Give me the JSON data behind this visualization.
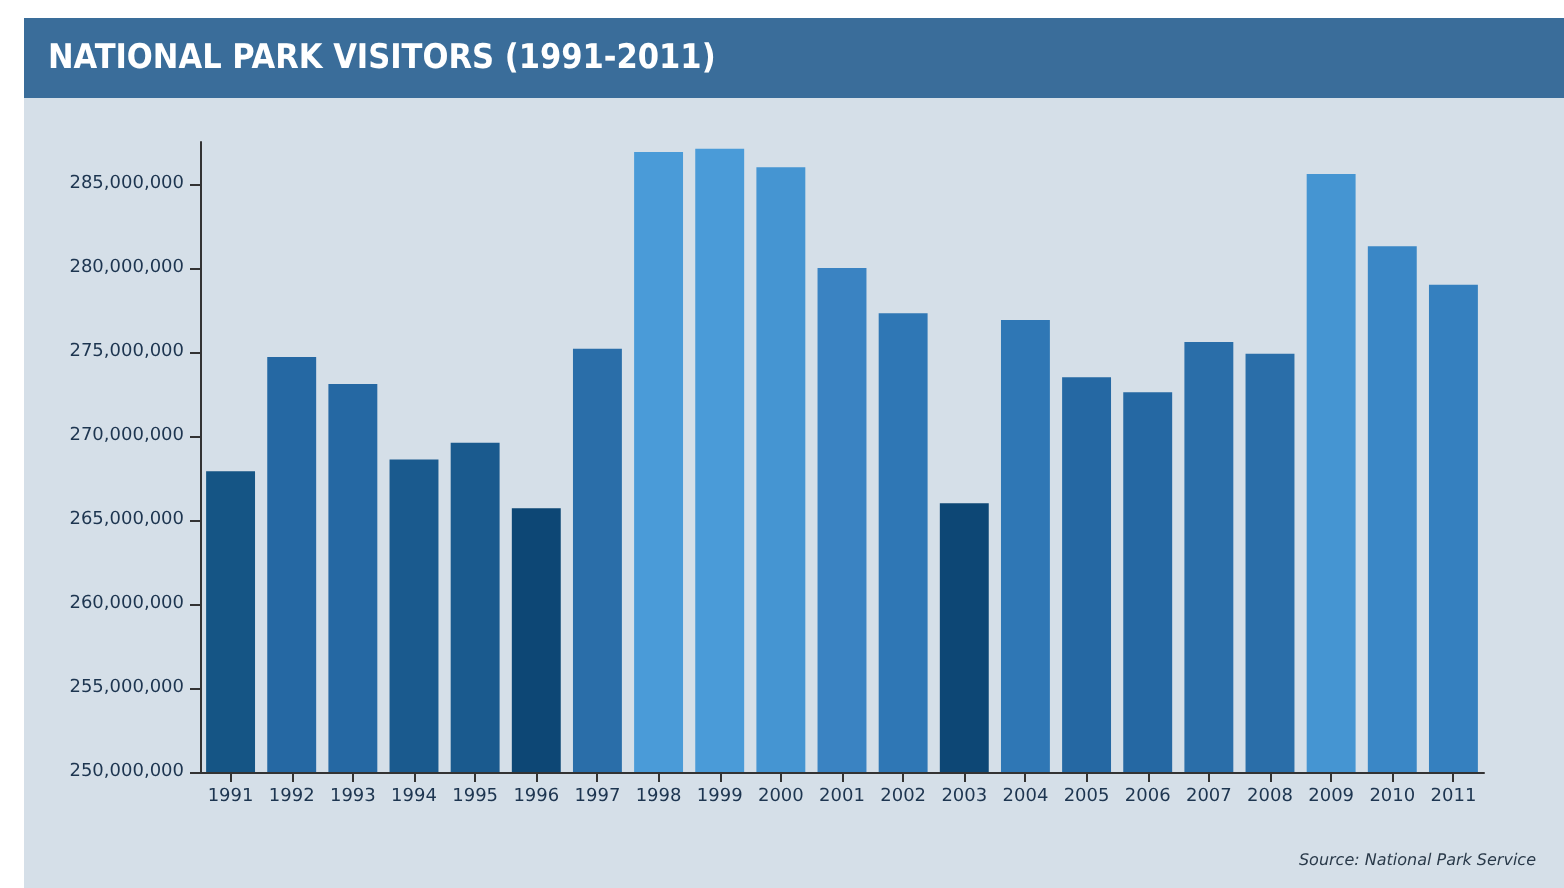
{
  "chart_data": {
    "type": "bar",
    "title": "NATIONAL PARK VISITORS (1991-2011)",
    "categories": [
      "1991",
      "1992",
      "1993",
      "1994",
      "1995",
      "1996",
      "1997",
      "1998",
      "1999",
      "2000",
      "2001",
      "2002",
      "2003",
      "2004",
      "2005",
      "2006",
      "2007",
      "2008",
      "2009",
      "2010",
      "2011"
    ],
    "values": [
      267900000,
      274700000,
      273100000,
      268600000,
      269600000,
      265700000,
      275200000,
      286900000,
      287100000,
      286000000,
      280000000,
      277300000,
      266000000,
      276900000,
      273500000,
      272600000,
      275600000,
      274900000,
      285600000,
      281300000,
      279000000
    ],
    "colors": [
      "#155585",
      "#2568a3",
      "#2568a3",
      "#1a5a8e",
      "#1a5a8e",
      "#0d4775",
      "#2a6ea9",
      "#4a9bd8",
      "#4a9bd8",
      "#4595d2",
      "#3a83c2",
      "#2f77b5",
      "#0d4775",
      "#2f77b5",
      "#2568a3",
      "#2568a3",
      "#2a6ea9",
      "#2a6ea9",
      "#4595d2",
      "#3a87c6",
      "#3580bf"
    ],
    "ylim": [
      250000000,
      287500000
    ],
    "yticks": [
      {
        "value": 250000000,
        "label": "250,000,000"
      },
      {
        "value": 255000000,
        "label": "255,000,000"
      },
      {
        "value": 260000000,
        "label": "260,000,000"
      },
      {
        "value": 265000000,
        "label": "265,000,000"
      },
      {
        "value": 270000000,
        "label": "270,000,000"
      },
      {
        "value": 275000000,
        "label": "275,000,000"
      },
      {
        "value": 280000000,
        "label": "280,000,000"
      },
      {
        "value": 285000000,
        "label": "285,000,000"
      }
    ],
    "grid": false,
    "annotations": [
      "Source: National Park Service"
    ]
  }
}
